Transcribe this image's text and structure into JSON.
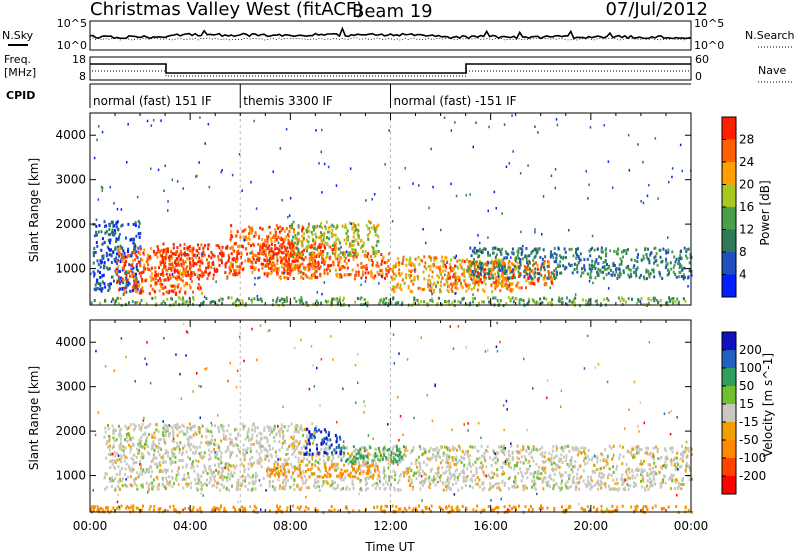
{
  "header": {
    "station": "Christmas Valley West (fitACF)",
    "beam": "Beam 19",
    "date": "07/Jul/2012"
  },
  "top_panels": {
    "nsky_label": "N.Sky",
    "nsearch_label": "N.Search",
    "noise_tick_hi": "10^5",
    "noise_tick_lo": "10^0",
    "freq_label_1": "Freq.",
    "freq_label_2": "[MHz]",
    "freq_tick_hi": "18",
    "freq_tick_lo": "8",
    "nave_label": "Nave",
    "nave_tick_hi": "60",
    "nave_tick_lo": "0",
    "cpid_label": "CPID",
    "cpid_modes": [
      {
        "label": "normal (fast) 151 IF",
        "start_hour": 0,
        "end_hour": 6
      },
      {
        "label": "themis 3300 IF",
        "start_hour": 6,
        "end_hour": 12
      },
      {
        "label": "normal (fast) -151 IF",
        "start_hour": 12,
        "end_hour": 24
      }
    ]
  },
  "colors": {
    "power_scale": [
      "#0020ff",
      "#2050c0",
      "#2e7a58",
      "#4aa04a",
      "#a8c820",
      "#ffa000",
      "#ff6000",
      "#ff2000"
    ],
    "velocity_scale": [
      "#ff0000",
      "#ff4400",
      "#ff8800",
      "#f0a000",
      "#c8c8c0",
      "#70c030",
      "#30a060",
      "#2060c0",
      "#1010c0"
    ]
  },
  "chart_data": [
    {
      "type": "heatmap",
      "panel": "power",
      "xlabel": "",
      "ylabel": "Slant Range [km]",
      "xlim": [
        0,
        24
      ],
      "ylim": [
        180,
        4500
      ],
      "yticks": [
        1000,
        2000,
        3000,
        4000
      ],
      "colorbar_label": "Power [dB]",
      "colorbar_ticks": [
        "4",
        "8",
        "12",
        "16",
        "20",
        "24",
        "28"
      ],
      "colorbar_range": [
        0,
        30
      ],
      "regions": [
        {
          "t": [
            0.1,
            2.0
          ],
          "r": [
            500,
            2100
          ],
          "level": 1
        },
        {
          "t": [
            1.0,
            4.5
          ],
          "r": [
            450,
            1500
          ],
          "level": 6
        },
        {
          "t": [
            2.5,
            6.0
          ],
          "r": [
            800,
            1600
          ],
          "level": 7
        },
        {
          "t": [
            5.5,
            8.5
          ],
          "r": [
            900,
            2000
          ],
          "level": 6
        },
        {
          "t": [
            6.5,
            10.0
          ],
          "r": [
            1000,
            1600
          ],
          "level": 7
        },
        {
          "t": [
            7.0,
            12.0
          ],
          "r": [
            800,
            1400
          ],
          "level": 6
        },
        {
          "t": [
            8.0,
            11.5
          ],
          "r": [
            1300,
            2100
          ],
          "level": 4
        },
        {
          "t": [
            12.0,
            17.0
          ],
          "r": [
            500,
            1300
          ],
          "level": 5
        },
        {
          "t": [
            14.0,
            18.5
          ],
          "r": [
            600,
            1200
          ],
          "level": 6
        },
        {
          "t": [
            15.0,
            24.0
          ],
          "r": [
            800,
            1500
          ],
          "level": 2
        },
        {
          "t": [
            0.0,
            24.0
          ],
          "r": [
            200,
            380
          ],
          "level": 3
        }
      ]
    },
    {
      "type": "heatmap",
      "panel": "velocity",
      "xlabel": "Time UT",
      "ylabel": "Slant Range [km]",
      "xlim": [
        0,
        24
      ],
      "ylim": [
        180,
        4500
      ],
      "xticks": [
        "00:00",
        "04:00",
        "08:00",
        "12:00",
        "16:00",
        "20:00",
        "00:00"
      ],
      "yticks": [
        1000,
        2000,
        3000,
        4000
      ],
      "colorbar_label": "Velocity [m s^-1]",
      "colorbar_ticks": [
        "-200",
        "-100",
        "-50",
        "-15",
        "15",
        "50",
        "100",
        "200"
      ],
      "colorbar_range": [
        -250,
        250
      ],
      "regions": [
        {
          "t": [
            0.5,
            9.0
          ],
          "r": [
            700,
            2200
          ],
          "velocity": 0
        },
        {
          "t": [
            9.0,
            24.0
          ],
          "r": [
            700,
            1700
          ],
          "velocity": 0
        },
        {
          "t": [
            8.5,
            10.0
          ],
          "r": [
            1500,
            2100
          ],
          "velocity": 200
        },
        {
          "t": [
            10.0,
            12.5
          ],
          "r": [
            1300,
            1700
          ],
          "velocity": 60
        },
        {
          "t": [
            7.0,
            11.5
          ],
          "r": [
            1000,
            1300
          ],
          "velocity": -60
        },
        {
          "t": [
            0.0,
            24.0
          ],
          "r": [
            200,
            350
          ],
          "velocity": -60
        }
      ]
    }
  ]
}
